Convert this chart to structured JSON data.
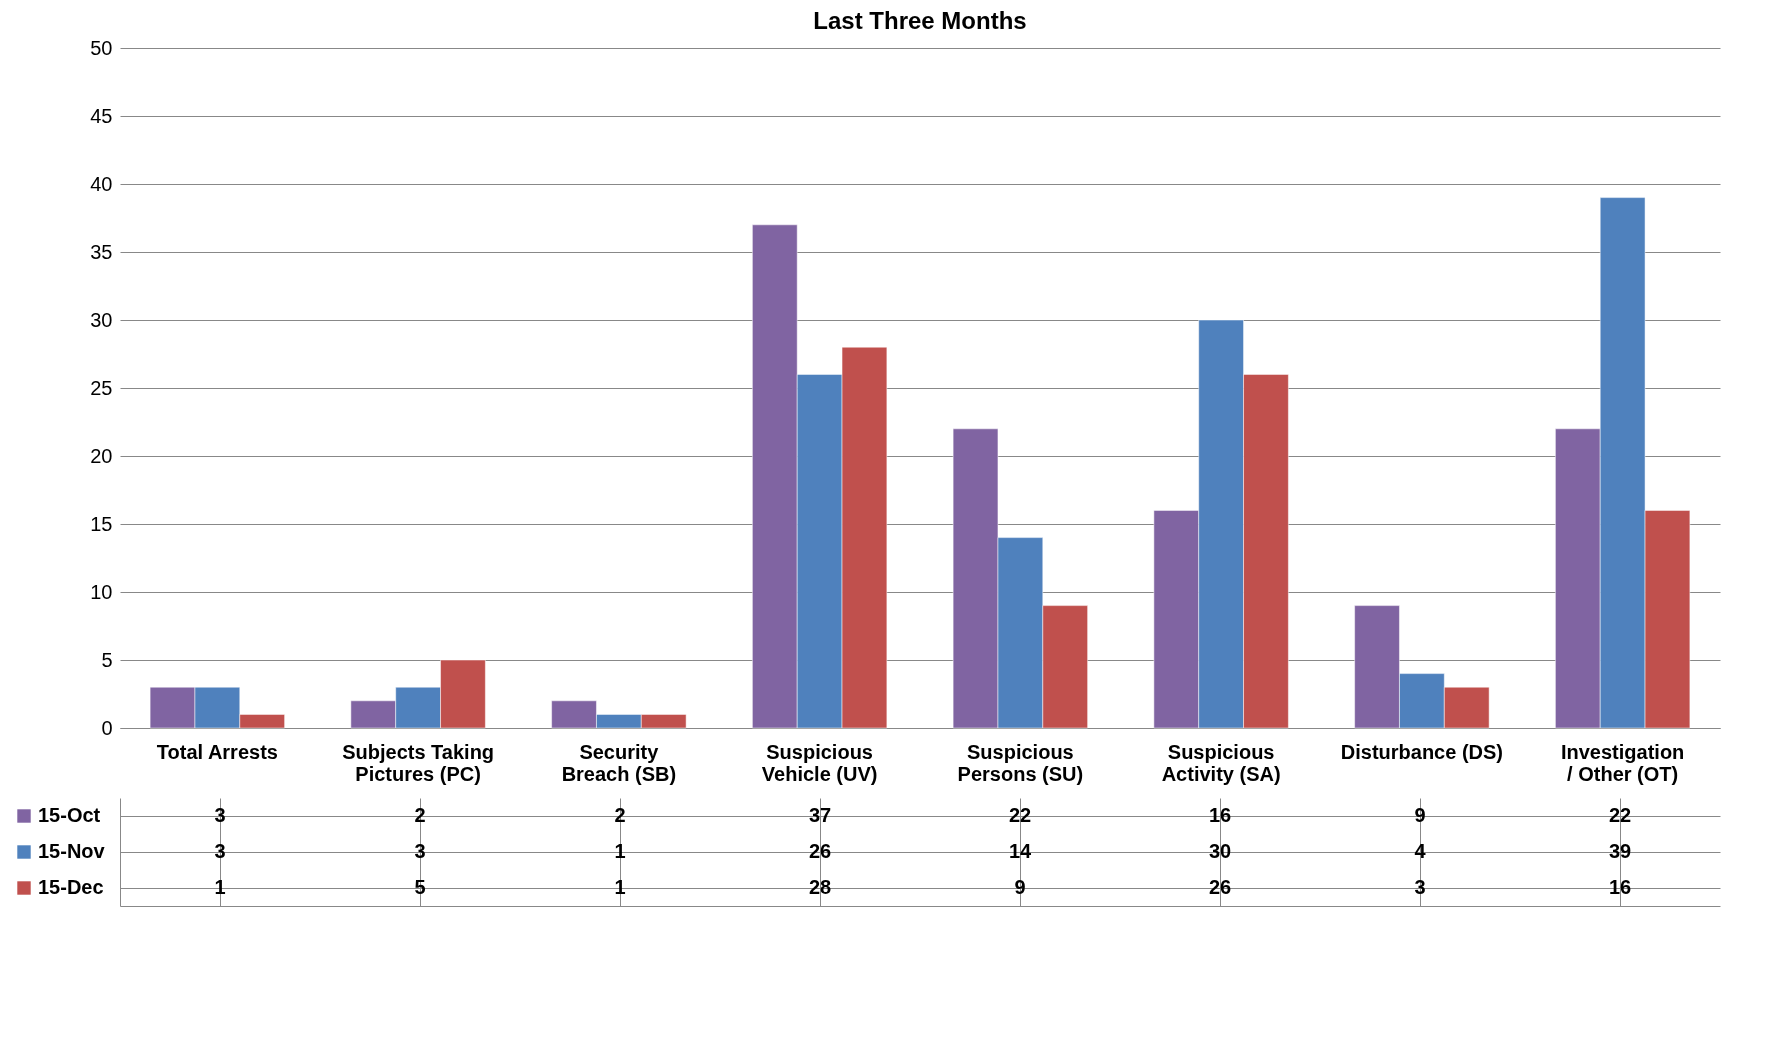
{
  "chart_data": {
    "type": "bar",
    "title": "Last Three Months",
    "categories": [
      "Total Arrests",
      "Subjects Taking Pictures (PC)",
      "Security Breach (SB)",
      "Suspicious Vehicle (UV)",
      "Suspicious Persons (SU)",
      "Suspicious Activity (SA)",
      "Disturbance (DS)",
      "Investigation / Other (OT)"
    ],
    "series": [
      {
        "name": "15-Oct",
        "color": "#8064a2",
        "values": [
          3,
          2,
          2,
          37,
          22,
          16,
          9,
          22
        ]
      },
      {
        "name": "15-Nov",
        "color": "#4f81bd",
        "values": [
          3,
          3,
          1,
          26,
          14,
          30,
          4,
          39
        ]
      },
      {
        "name": "15-Dec",
        "color": "#c0504d",
        "values": [
          1,
          5,
          1,
          28,
          9,
          26,
          3,
          16
        ]
      }
    ],
    "ylim": [
      0,
      50
    ],
    "yticks": [
      0,
      5,
      10,
      15,
      20,
      25,
      30,
      35,
      40,
      45,
      50
    ],
    "grid": "y",
    "legend": "bottom left",
    "data_labels": true
  }
}
